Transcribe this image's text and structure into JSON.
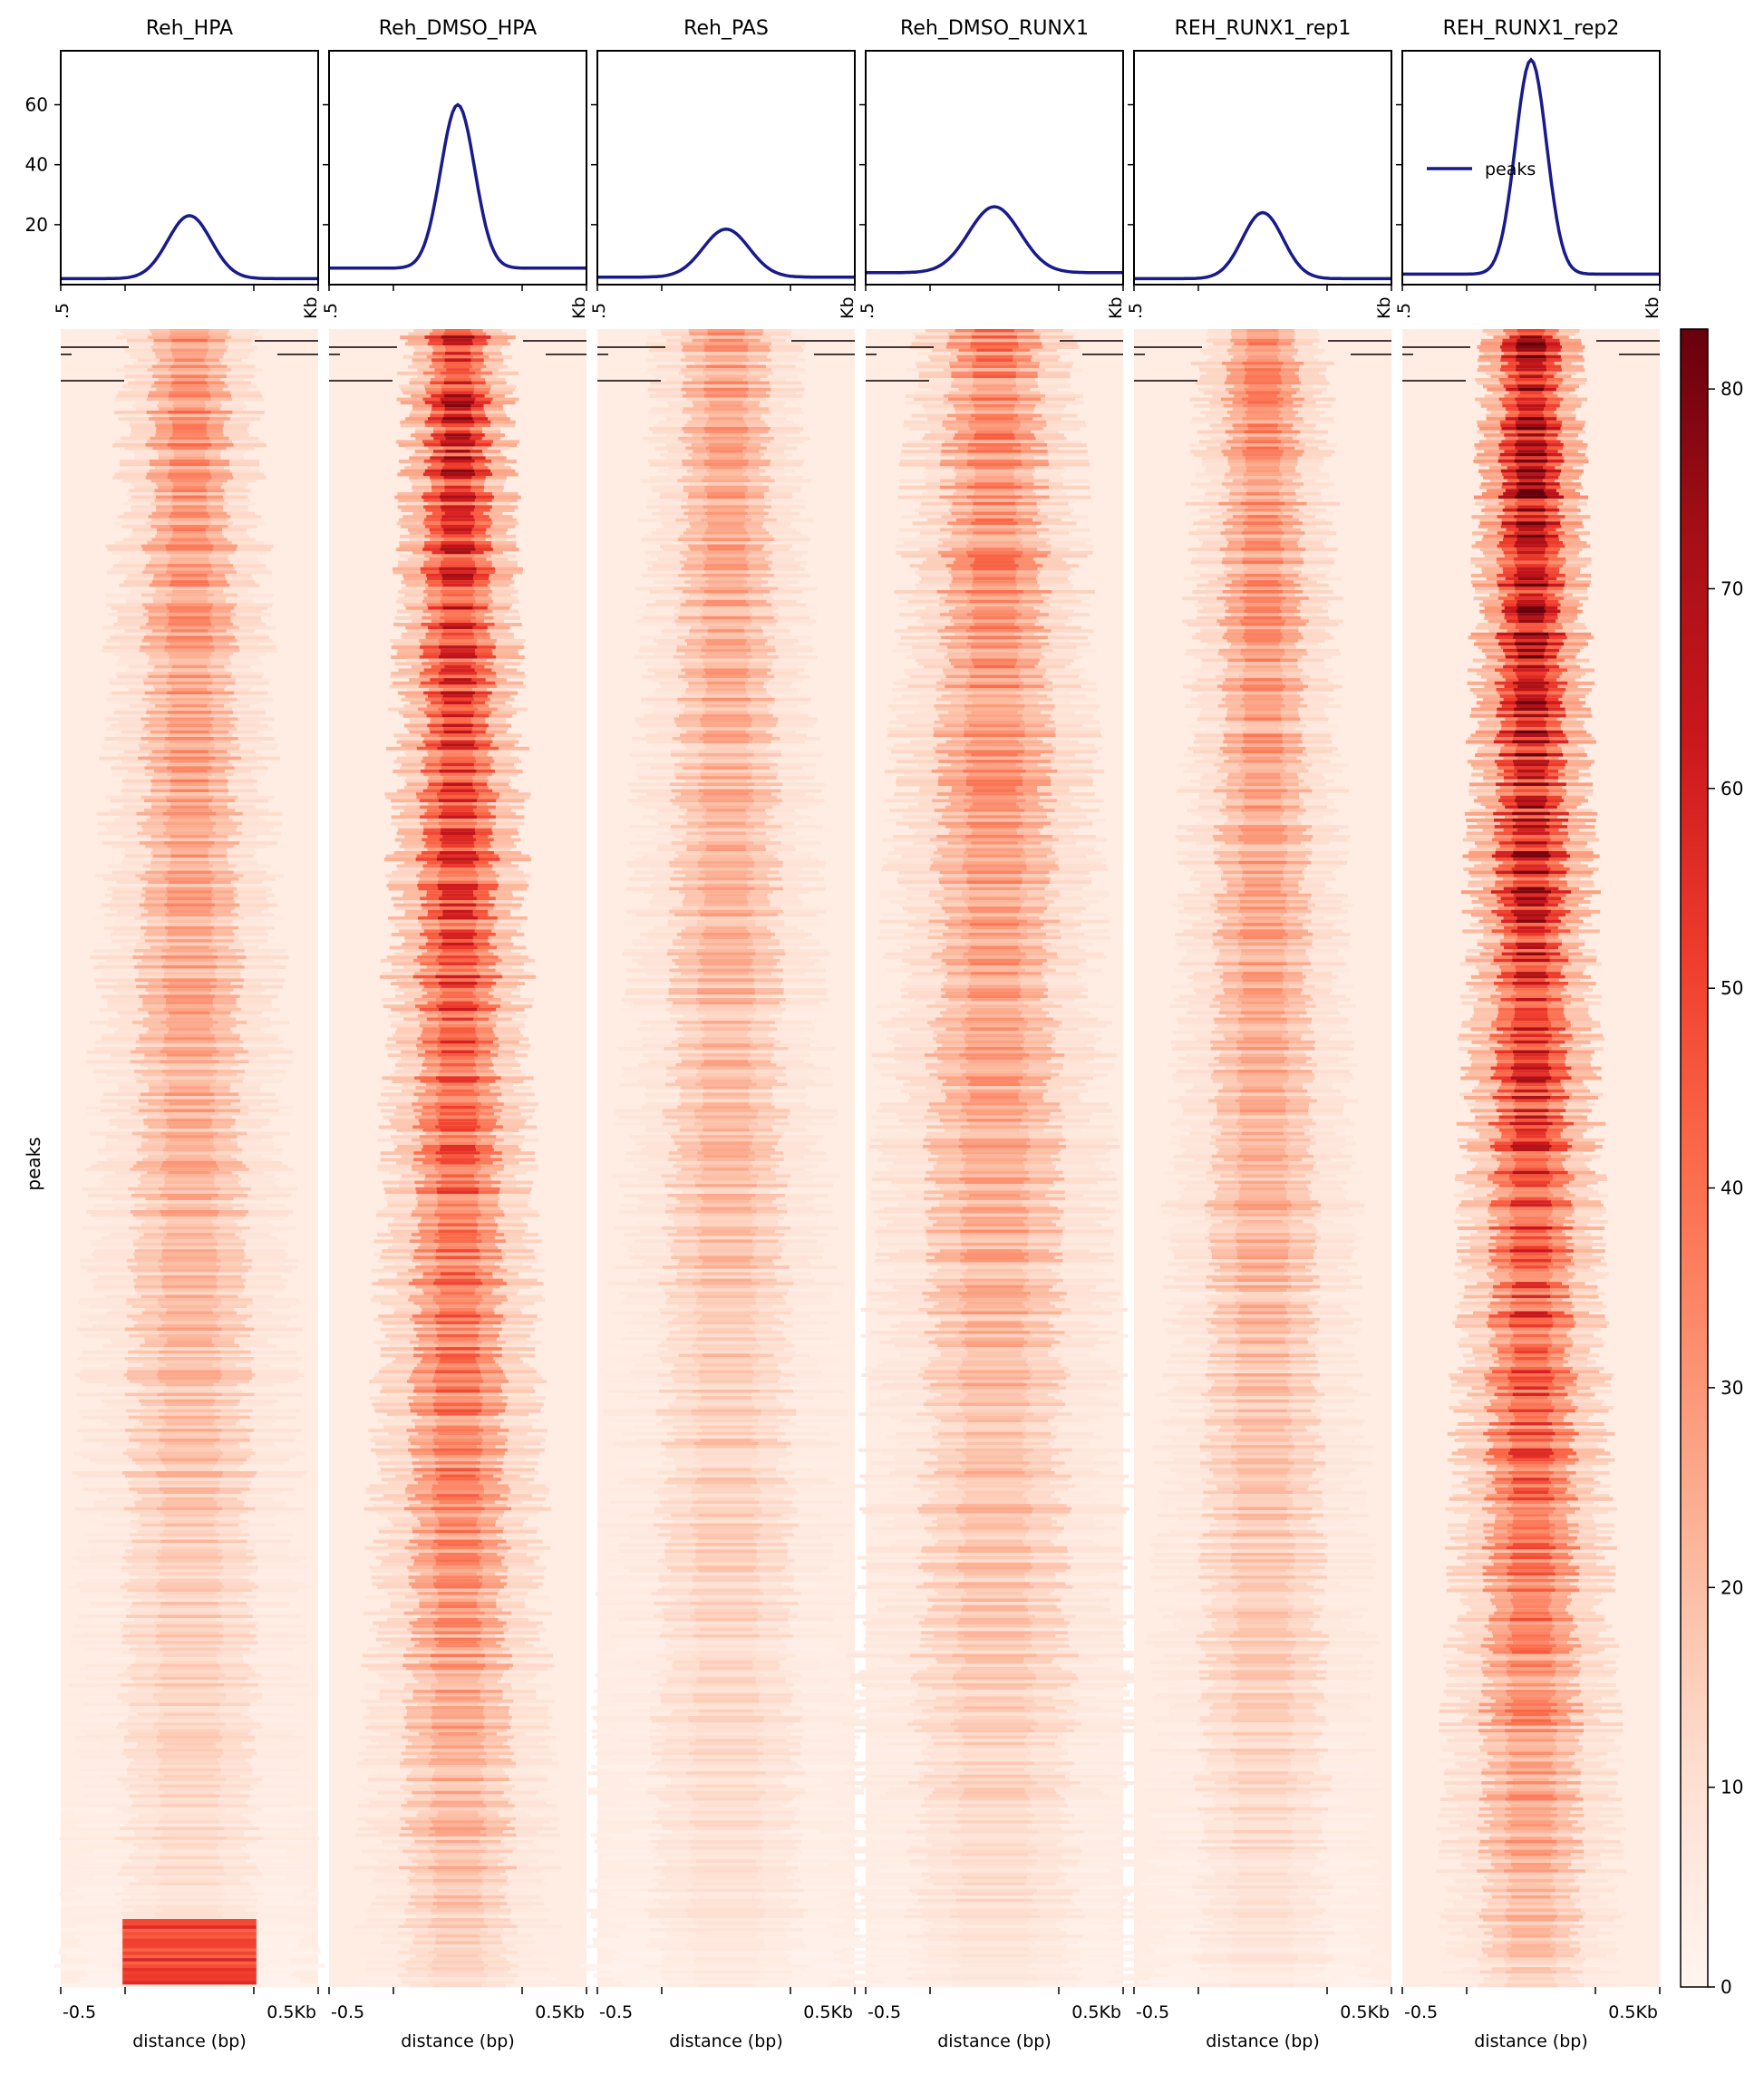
{
  "chart_data": {
    "type": "heatmap",
    "ylabel": "peaks",
    "xlabel": "distance (bp)",
    "x_tick_labels": [
      "-0.5",
      "0.5Kb"
    ],
    "x_tick_labels_clipped": [
      ".5",
      "Kb"
    ],
    "profile_yticks": [
      20,
      40,
      60
    ],
    "profile_ylim": [
      0,
      78
    ],
    "colorbar": {
      "min": 0,
      "max": 83,
      "ticks": [
        0,
        10,
        20,
        30,
        40,
        50,
        60,
        70,
        80
      ]
    },
    "legend": {
      "label": "peaks",
      "color": "#191a8c"
    },
    "colors": {
      "profile_line": "#191a8c"
    },
    "samples": [
      {
        "name": "Reh_HPA",
        "peak": 23,
        "baseline": 2,
        "width": 0.32,
        "heat": 0.42,
        "bottom_blob": 1
      },
      {
        "name": "Reh_DMSO_HPA",
        "peak": 60,
        "baseline": 5.5,
        "width": 0.25,
        "heat": 0.78,
        "bottom_blob": 0
      },
      {
        "name": "Reh_PAS",
        "peak": 18.5,
        "baseline": 2.5,
        "width": 0.34,
        "heat": 0.36,
        "bottom_blob": 0
      },
      {
        "name": "Reh_DMSO_RUNX1",
        "peak": 26,
        "baseline": 4,
        "width": 0.38,
        "heat": 0.46,
        "bottom_blob": 0
      },
      {
        "name": "REH_RUNX1_rep1",
        "peak": 24,
        "baseline": 2,
        "width": 0.3,
        "heat": 0.42,
        "bottom_blob": 0
      },
      {
        "name": "REH_RUNX1_rep2",
        "peak": 75,
        "baseline": 3.5,
        "width": 0.23,
        "heat": 0.95,
        "bottom_blob": 0
      }
    ]
  }
}
